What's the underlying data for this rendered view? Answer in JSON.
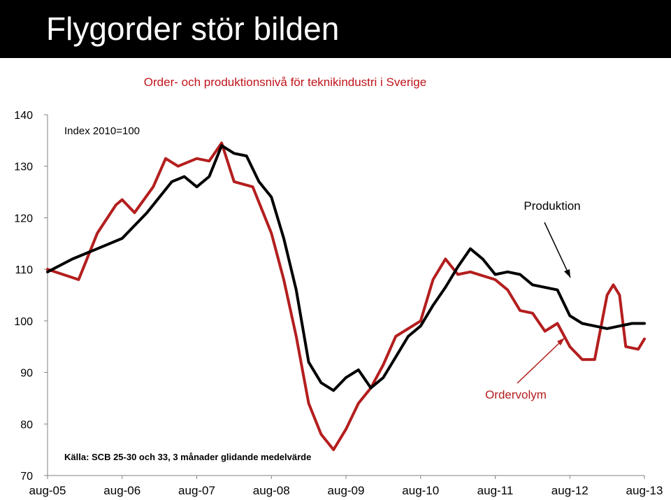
{
  "slide": {
    "title": "Flygorder stör bilden"
  },
  "chart_data": {
    "type": "line",
    "title": "Order- och produktionsnivå för teknikindustri i Sverige",
    "ylabel": "Index 2010=100",
    "source_note": "Källa: SCB  25-30 och 33, 3 månader glidande medelvärde",
    "ylim": [
      70,
      140
    ],
    "yticks": [
      70,
      80,
      90,
      100,
      110,
      120,
      130,
      140
    ],
    "xticks": [
      "aug-05",
      "aug-06",
      "aug-07",
      "aug-08",
      "aug-09",
      "aug-10",
      "aug-11",
      "aug-12",
      "aug-13"
    ],
    "x_start": "aug-05",
    "x_end": "aug-13",
    "grid": false,
    "series": [
      {
        "name": "Ordervolym",
        "color": "#b41e1e",
        "points": [
          [
            "aug-05",
            110
          ],
          [
            "jan-06",
            108
          ],
          [
            "apr-06",
            117
          ],
          [
            "jul-06",
            122.5
          ],
          [
            "aug-06",
            123.5
          ],
          [
            "okt-06",
            121
          ],
          [
            "jan-07",
            126
          ],
          [
            "mar-07",
            131.5
          ],
          [
            "maj-07",
            130
          ],
          [
            "aug-07",
            131.5
          ],
          [
            "okt-07",
            131
          ],
          [
            "dec-07",
            134.5
          ],
          [
            "feb-08",
            127
          ],
          [
            "maj-08",
            126
          ],
          [
            "aug-08",
            117
          ],
          [
            "okt-08",
            108
          ],
          [
            "dec-08",
            97
          ],
          [
            "feb-09",
            84
          ],
          [
            "apr-09",
            78
          ],
          [
            "jun-09",
            75
          ],
          [
            "aug-09",
            79
          ],
          [
            "okt-09",
            84
          ],
          [
            "dec-09",
            87
          ],
          [
            "feb-10",
            91.5
          ],
          [
            "apr-10",
            97
          ],
          [
            "aug-10",
            100
          ],
          [
            "okt-10",
            108
          ],
          [
            "dec-10",
            112
          ],
          [
            "feb-11",
            109
          ],
          [
            "apr-11",
            109.5
          ],
          [
            "aug-11",
            108
          ],
          [
            "okt-11",
            106
          ],
          [
            "dec-11",
            102
          ],
          [
            "feb-12",
            101.5
          ],
          [
            "apr-12",
            98
          ],
          [
            "jun-12",
            99.5
          ],
          [
            "aug-12",
            95
          ],
          [
            "okt-12",
            92.5
          ],
          [
            "dec-12",
            92.5
          ],
          [
            "feb-13",
            105
          ],
          [
            "mar-13",
            107
          ],
          [
            "apr-13",
            105
          ],
          [
            "maj-13",
            95
          ],
          [
            "jul-13",
            94.5
          ],
          [
            "aug-13",
            96.5
          ]
        ]
      },
      {
        "name": "Produktion",
        "color": "#000000",
        "points": [
          [
            "aug-05",
            109.5
          ],
          [
            "dec-05",
            112
          ],
          [
            "apr-06",
            114
          ],
          [
            "aug-06",
            116
          ],
          [
            "dec-06",
            121
          ],
          [
            "apr-07",
            127
          ],
          [
            "jun-07",
            128
          ],
          [
            "aug-07",
            126
          ],
          [
            "okt-07",
            128
          ],
          [
            "dec-07",
            134
          ],
          [
            "feb-08",
            132.5
          ],
          [
            "apr-08",
            132
          ],
          [
            "jun-08",
            127
          ],
          [
            "aug-08",
            124
          ],
          [
            "okt-08",
            116
          ],
          [
            "dec-08",
            106
          ],
          [
            "feb-09",
            92
          ],
          [
            "apr-09",
            88
          ],
          [
            "jun-09",
            86.5
          ],
          [
            "aug-09",
            89
          ],
          [
            "okt-09",
            90.5
          ],
          [
            "dec-09",
            87
          ],
          [
            "feb-10",
            89
          ],
          [
            "apr-10",
            93
          ],
          [
            "jun-10",
            97
          ],
          [
            "aug-10",
            99
          ],
          [
            "okt-10",
            103
          ],
          [
            "dec-10",
            106.5
          ],
          [
            "feb-11",
            110.5
          ],
          [
            "apr-11",
            114
          ],
          [
            "jun-11",
            112
          ],
          [
            "aug-11",
            109
          ],
          [
            "okt-11",
            109.5
          ],
          [
            "dec-11",
            109
          ],
          [
            "feb-12",
            107
          ],
          [
            "apr-12",
            106.5
          ],
          [
            "jun-12",
            106
          ],
          [
            "aug-12",
            101
          ],
          [
            "okt-12",
            99.5
          ],
          [
            "dec-12",
            99
          ],
          [
            "feb-13",
            98.5
          ],
          [
            "apr-13",
            99
          ],
          [
            "jun-13",
            99.5
          ],
          [
            "aug-13",
            99.5
          ]
        ]
      }
    ]
  }
}
